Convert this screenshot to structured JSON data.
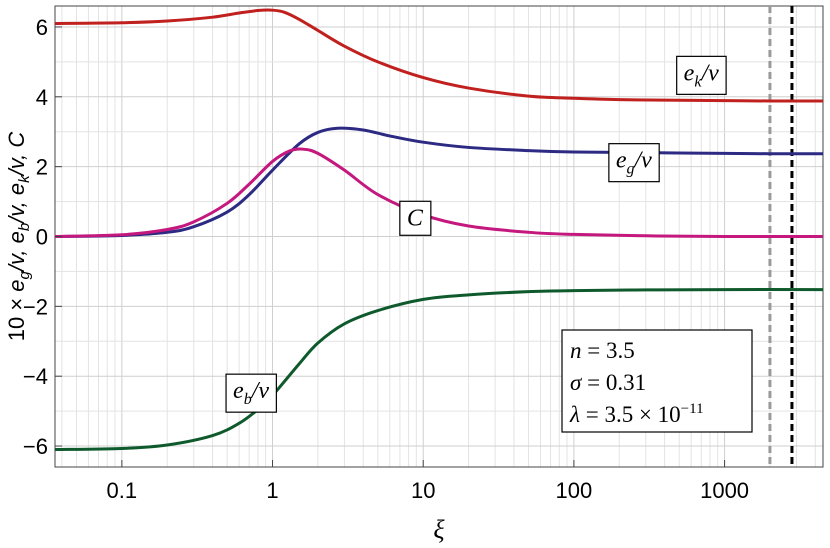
{
  "chart_data": {
    "type": "line",
    "xlabel": "ξ",
    "ylabel": "10 × e_g/v, e_b/v, e_k/v, C",
    "xscale": "log",
    "xlim": [
      0.036,
      4500
    ],
    "ylim": [
      -6.6,
      6.6
    ],
    "grid": true,
    "x_ticks": [
      {
        "value": 0.1,
        "label": "0.1"
      },
      {
        "value": 1,
        "label": "1"
      },
      {
        "value": 10,
        "label": "10"
      },
      {
        "value": 100,
        "label": "100"
      },
      {
        "value": 1000,
        "label": "1000"
      }
    ],
    "y_ticks": [
      {
        "value": -6,
        "label": "−6"
      },
      {
        "value": -4,
        "label": "−4"
      },
      {
        "value": -2,
        "label": "−2"
      },
      {
        "value": 0,
        "label": "0"
      },
      {
        "value": 2,
        "label": "2"
      },
      {
        "value": 4,
        "label": "4"
      },
      {
        "value": 6,
        "label": "6"
      }
    ],
    "series": [
      {
        "key": "ek",
        "color": "#c0201e",
        "x": [
          0.036,
          0.1,
          0.2,
          0.4,
          0.6,
          0.8,
          1.0,
          1.2,
          1.5,
          2,
          3,
          5,
          10,
          20,
          50,
          100,
          200,
          500,
          1000,
          2000,
          4500
        ],
        "y": [
          6.1,
          6.12,
          6.17,
          6.28,
          6.4,
          6.47,
          6.48,
          6.42,
          6.22,
          5.9,
          5.45,
          5.0,
          4.55,
          4.25,
          4.02,
          3.96,
          3.92,
          3.9,
          3.89,
          3.88,
          3.88
        ]
      },
      {
        "key": "eg",
        "color": "#2c2a82",
        "x": [
          0.036,
          0.1,
          0.2,
          0.3,
          0.5,
          0.7,
          1.0,
          1.5,
          2,
          2.7,
          4,
          6,
          10,
          20,
          50,
          100,
          300,
          1000,
          2000,
          4500
        ],
        "y": [
          0.0,
          0.03,
          0.12,
          0.28,
          0.7,
          1.2,
          1.9,
          2.65,
          2.98,
          3.1,
          3.05,
          2.88,
          2.7,
          2.55,
          2.46,
          2.42,
          2.4,
          2.38,
          2.37,
          2.37
        ]
      },
      {
        "key": "c",
        "color": "#c4187e",
        "x": [
          0.036,
          0.1,
          0.2,
          0.3,
          0.5,
          0.7,
          1.0,
          1.3,
          1.6,
          2.0,
          3,
          5,
          10,
          20,
          50,
          100,
          300,
          1000,
          4500
        ],
        "y": [
          0.0,
          0.05,
          0.2,
          0.42,
          0.95,
          1.5,
          2.15,
          2.45,
          2.5,
          2.38,
          1.9,
          1.2,
          0.62,
          0.3,
          0.12,
          0.06,
          0.02,
          0.0,
          0.0
        ]
      },
      {
        "key": "eb",
        "color": "#0f5a2c",
        "x": [
          0.036,
          0.1,
          0.2,
          0.4,
          0.6,
          0.8,
          1.0,
          1.5,
          2,
          3,
          5,
          10,
          20,
          50,
          100,
          300,
          1000,
          4500
        ],
        "y": [
          -6.1,
          -6.07,
          -5.97,
          -5.7,
          -5.35,
          -4.95,
          -4.55,
          -3.65,
          -3.05,
          -2.5,
          -2.12,
          -1.8,
          -1.67,
          -1.58,
          -1.55,
          -1.53,
          -1.52,
          -1.52
        ]
      }
    ],
    "vlines": [
      {
        "x": 2000,
        "color": "#9a9a9a",
        "style": "dashed"
      },
      {
        "x": 2800,
        "color": "#000000",
        "style": "dashed"
      }
    ],
    "annotations": [
      {
        "key": "ek",
        "text": "e",
        "sub": "k",
        "suffix": "/v",
        "x": 700,
        "y": 4.7
      },
      {
        "key": "eg",
        "text": "e",
        "sub": "g",
        "suffix": "/v",
        "x": 250,
        "y": 2.2
      },
      {
        "key": "c",
        "text": "C",
        "sub": "",
        "suffix": "",
        "x": 8.8,
        "y": 0.55
      },
      {
        "key": "eb",
        "text": "e",
        "sub": "b",
        "suffix": "/v",
        "x": 0.72,
        "y": -4.4
      }
    ],
    "info_box": [
      "n = 3.5",
      "σ = 0.31",
      "λ = 3.5 × 10^−11"
    ]
  }
}
